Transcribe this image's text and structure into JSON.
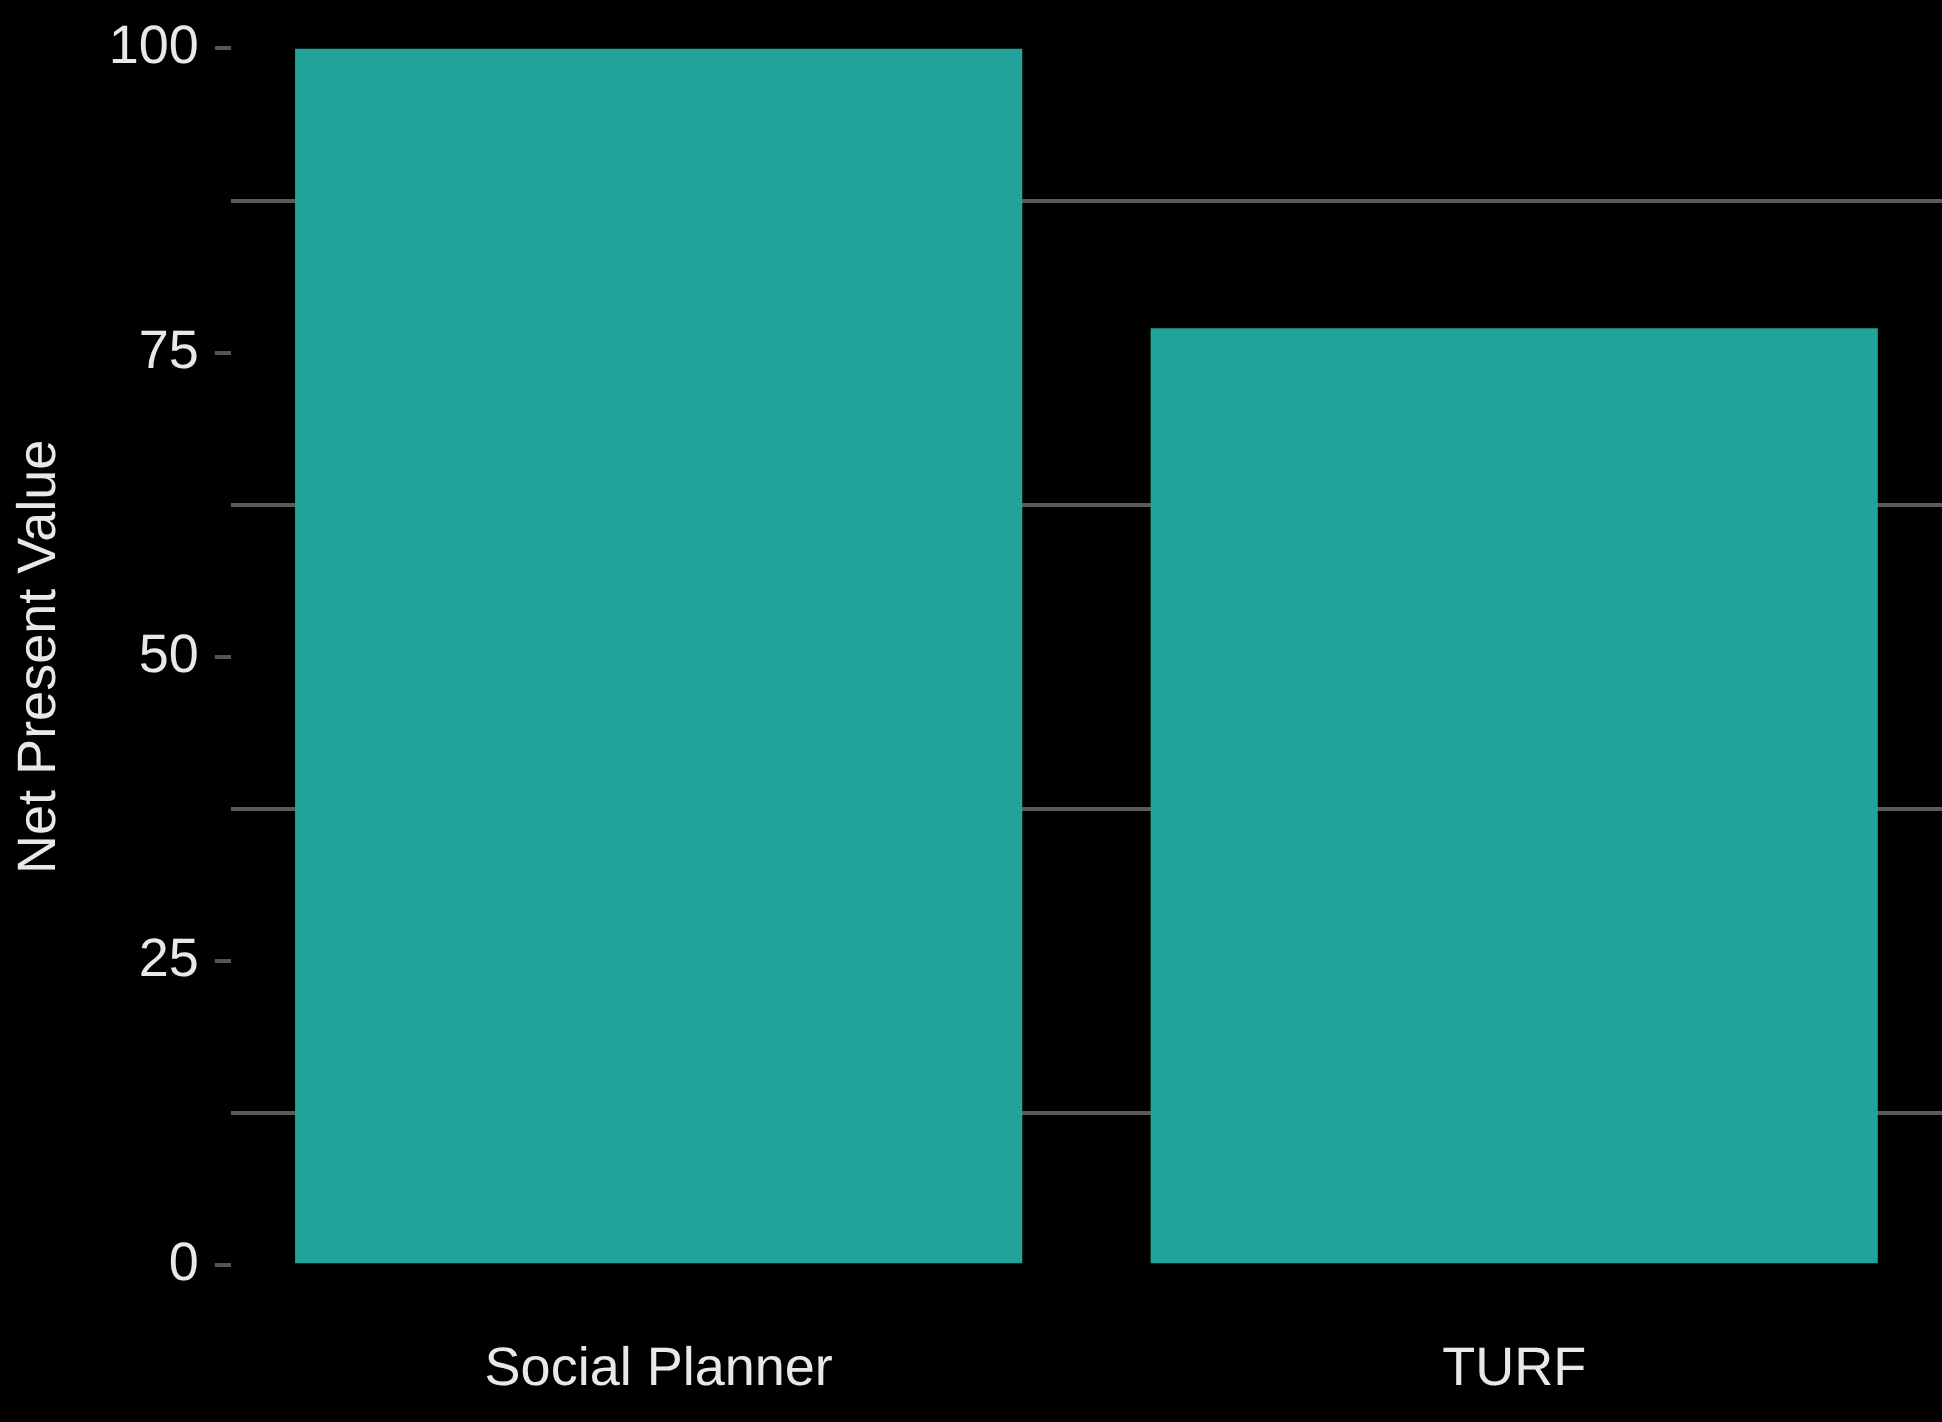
{
  "chart_data": {
    "type": "bar",
    "ylabel": "Net Present Value",
    "categories": [
      "Social Planner",
      "TURF"
    ],
    "values": [
      100,
      77
    ],
    "color": "#21a39a",
    "ylim": [
      0,
      100
    ],
    "yticks": [
      0,
      {
        "value": 12.5,
        "label": null
      },
      25,
      {
        "value": 37.5,
        "label": null
      },
      50,
      {
        "value": 62.5,
        "label": null
      },
      75,
      {
        "value": 87.5,
        "label": null
      },
      100
    ],
    "grid": "y"
  }
}
